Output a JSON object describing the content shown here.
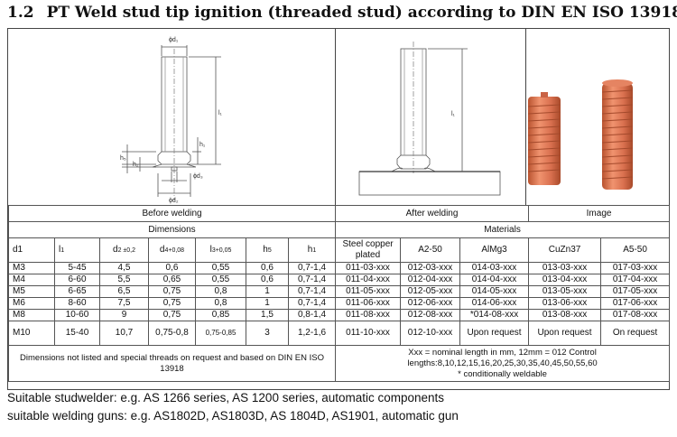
{
  "title": {
    "number": "1.2",
    "text": "PT Weld stud tip ignition (threaded stud) according to DIN EN ISO 13918"
  },
  "figure": {
    "left_labels": {
      "d1": "ϕd₁",
      "l1": "l₁",
      "h5": "h₅",
      "h1": "h₁",
      "h2": "h₂",
      "d3": "ϕd₃",
      "d2": "ϕd₂"
    },
    "mid_label": "l₁",
    "image_color": "#d9704f"
  },
  "sections": {
    "before": "Before welding",
    "after": "After welding",
    "image": "Image",
    "dimensions": "Dimensions",
    "materials": "Materials"
  },
  "columns": {
    "d1": "d1",
    "l1": {
      "main": "l",
      "sub": "1"
    },
    "d2": {
      "main": "d",
      "sub": "2 ±0,2"
    },
    "d4": {
      "main": "d",
      "sub": "4+0,08"
    },
    "l3": {
      "main": "l",
      "sub": "3+0,05"
    },
    "h5": {
      "main": "h",
      "sub": "5"
    },
    "h1": {
      "main": "h",
      "sub": "1"
    },
    "mat1": "Steel copper plated",
    "mat2": "A2-50",
    "mat3": "AlMg3",
    "mat4": "CuZn37",
    "mat5": "A5-50"
  },
  "rows": [
    [
      "M3",
      "5-45",
      "4,5",
      "0,6",
      "0,55",
      "0,6",
      "0,7-1,4",
      "011-03-xxx",
      "012-03-xxx",
      "014-03-xxx",
      "013-03-xxx",
      "017-03-xxx"
    ],
    [
      "M4",
      "6-60",
      "5,5",
      "0,65",
      "0,55",
      "0,6",
      "0,7-1,4",
      "011-04-xxx",
      "012-04-xxx",
      "014-04-xxx",
      "013-04-xxx",
      "017-04-xxx"
    ],
    [
      "M5",
      "6-65",
      "6,5",
      "0,75",
      "0,8",
      "1",
      "0,7-1,4",
      "011-05-xxx",
      "012-05-xxx",
      "014-05-xxx",
      "013-05-xxx",
      "017-05-xxx"
    ],
    [
      "M6",
      "8-60",
      "7,5",
      "0,75",
      "0,8",
      "1",
      "0,7-1,4",
      "011-06-xxx",
      "012-06-xxx",
      "014-06-xxx",
      "013-06-xxx",
      "017-06-xxx"
    ],
    [
      "M8",
      "10-60",
      "9",
      "0,75",
      "0,85",
      "1,5",
      "0,8-1,4",
      "011-08-xxx",
      "012-08-xxx",
      "*014-08-xxx",
      "013-08-xxx",
      "017-08-xxx"
    ]
  ],
  "row_m10": {
    "d1": "M10",
    "l1": "15-40",
    "d2": "10,7",
    "d4": "0,75-0,8",
    "l3": "0,75-0,85",
    "h5": "3",
    "h1": "1,2-1,6",
    "mat1": "011-10-xxx",
    "mat2": "012-10-xxx",
    "mat3": "Upon request",
    "mat4": "Upon request",
    "mat5": "On request"
  },
  "notes": {
    "left": "Dimensions not listed and special threads on request and based on DIN EN ISO 13918",
    "right_line1": "Xxx = nominal length in mm, 12mm = 012 Control",
    "right_line2": "lengths:8,10,12,15,16,20,25,30,35,40,45,50,55,60",
    "right_line3": "* conditionally weldable"
  },
  "footer": {
    "line1": "Suitable studwelder: e.g. AS 1266 series, AS 1200 series, automatic components",
    "line2": "suitable welding guns: e.g. AS1802D, AS1803D, AS 1804D, AS1901, automatic gun"
  }
}
